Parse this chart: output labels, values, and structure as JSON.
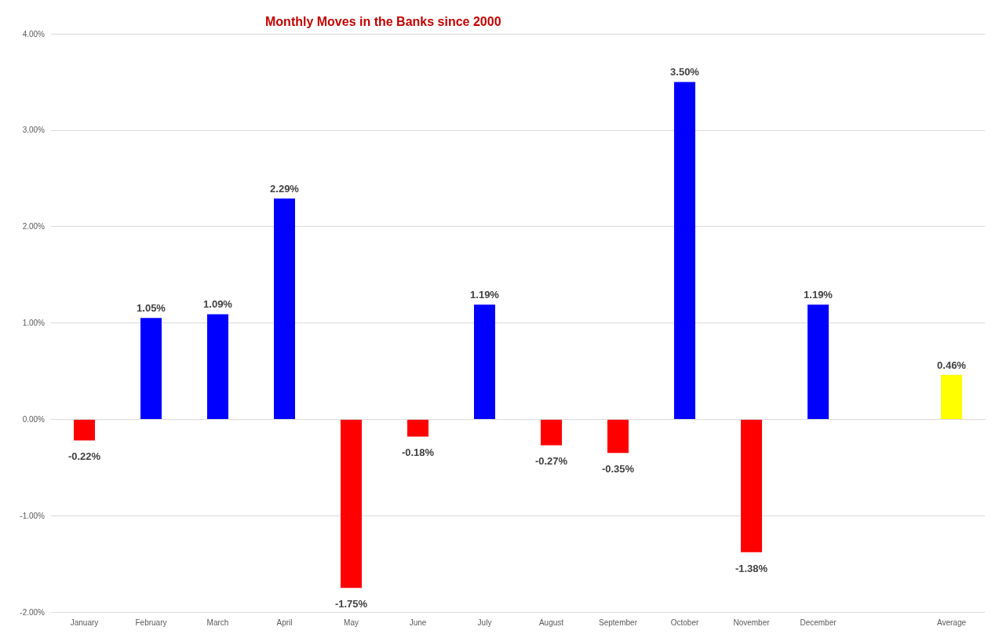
{
  "chart_data": {
    "type": "bar",
    "title": "Monthly Moves in the Banks since 2000",
    "categories": [
      "January",
      "February",
      "March",
      "April",
      "May",
      "June",
      "July",
      "August",
      "September",
      "October",
      "November",
      "December",
      null,
      "Average"
    ],
    "values": [
      -0.22,
      1.05,
      1.09,
      2.29,
      -1.75,
      -0.18,
      1.19,
      -0.27,
      -0.35,
      3.5,
      -1.38,
      1.19,
      null,
      0.46
    ],
    "colors": [
      "#ff0000",
      "#0000ff",
      "#0000ff",
      "#0000ff",
      "#ff0000",
      "#ff0000",
      "#0000ff",
      "#ff0000",
      "#ff0000",
      "#0000ff",
      "#ff0000",
      "#0000ff",
      null,
      "#ffff00"
    ],
    "value_labels": [
      "-0.22%",
      "1.05%",
      "1.09%",
      "2.29%",
      "-1.75%",
      "-0.18%",
      "1.19%",
      "-0.27%",
      "-0.35%",
      "3.50%",
      "-1.38%",
      "1.19%",
      null,
      "0.46%"
    ],
    "ylim": [
      -2,
      4
    ],
    "yticks": [
      {
        "value": -2,
        "label": "-2.00%"
      },
      {
        "value": -1,
        "label": "-1.00%"
      },
      {
        "value": 0,
        "label": "0.00%"
      },
      {
        "value": 1,
        "label": "1.00%"
      },
      {
        "value": 2,
        "label": "2.00%"
      },
      {
        "value": 3,
        "label": "3.00%"
      },
      {
        "value": 4,
        "label": "4.00%"
      }
    ],
    "grid": "y"
  }
}
